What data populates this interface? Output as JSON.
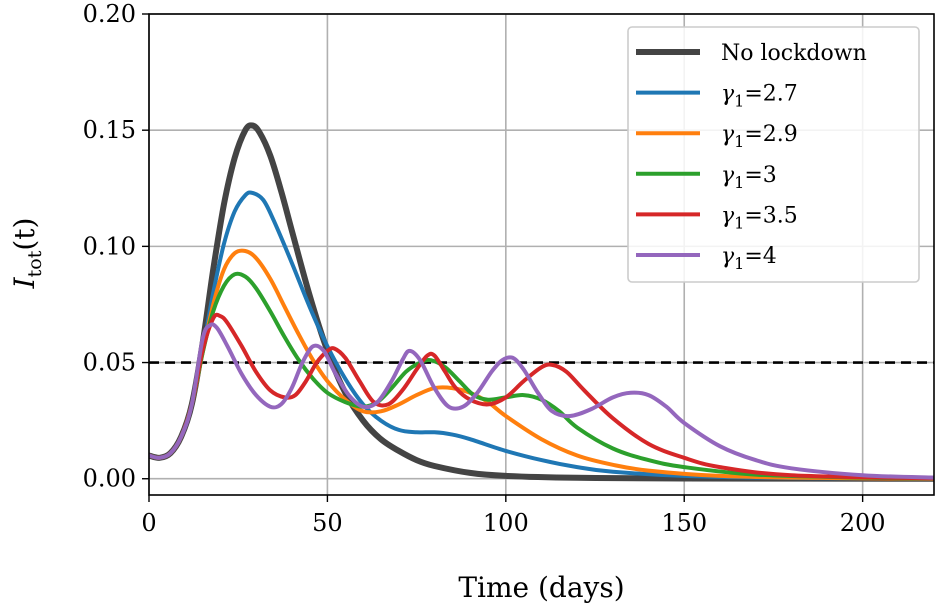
{
  "chart_data": {
    "type": "line",
    "title": "",
    "xlabel": "Time (days)",
    "ylabel_main": "I",
    "ylabel_sub": "tot",
    "ylabel_arg": "(t)",
    "xlim": [
      0,
      220
    ],
    "ylim": [
      -0.007,
      0.2
    ],
    "xticks": [
      0,
      50,
      100,
      150,
      200
    ],
    "xtick_labels": [
      "0",
      "50",
      "100",
      "150",
      "200"
    ],
    "yticks": [
      0.0,
      0.05,
      0.1,
      0.15,
      0.2
    ],
    "ytick_labels": [
      "0.00",
      "0.05",
      "0.10",
      "0.15",
      "0.20"
    ],
    "grid": true,
    "legend_position": "top-right",
    "threshold": {
      "y": 0.05,
      "style": "dashed",
      "color": "#000000"
    },
    "series": [
      {
        "name": "No lockdown",
        "label_main": "No lockdown",
        "label_value": "",
        "color": "#444444",
        "points": [
          [
            0,
            0.01
          ],
          [
            3,
            0.009
          ],
          [
            6,
            0.011
          ],
          [
            9,
            0.018
          ],
          [
            12,
            0.032
          ],
          [
            15,
            0.058
          ],
          [
            18,
            0.09
          ],
          [
            21,
            0.118
          ],
          [
            24,
            0.138
          ],
          [
            27,
            0.15
          ],
          [
            29,
            0.152
          ],
          [
            31,
            0.149
          ],
          [
            34,
            0.139
          ],
          [
            37,
            0.124
          ],
          [
            40,
            0.107
          ],
          [
            45,
            0.079
          ],
          [
            50,
            0.055
          ],
          [
            55,
            0.037
          ],
          [
            60,
            0.025
          ],
          [
            65,
            0.017
          ],
          [
            70,
            0.012
          ],
          [
            75,
            0.008
          ],
          [
            80,
            0.0055
          ],
          [
            90,
            0.0025
          ],
          [
            100,
            0.0012
          ],
          [
            120,
            0.0004
          ],
          [
            150,
            0.0001
          ],
          [
            220,
            0.0
          ]
        ]
      },
      {
        "name": "γ1=2.7",
        "label_main": "γ",
        "label_value": "=2.7",
        "color": "#1f77b4",
        "points": [
          [
            0,
            0.01
          ],
          [
            3,
            0.009
          ],
          [
            6,
            0.011
          ],
          [
            9,
            0.018
          ],
          [
            12,
            0.032
          ],
          [
            15,
            0.055
          ],
          [
            18,
            0.08
          ],
          [
            21,
            0.101
          ],
          [
            24,
            0.115
          ],
          [
            27,
            0.122
          ],
          [
            29,
            0.123
          ],
          [
            32,
            0.12
          ],
          [
            35,
            0.111
          ],
          [
            40,
            0.093
          ],
          [
            45,
            0.074
          ],
          [
            50,
            0.057
          ],
          [
            55,
            0.043
          ],
          [
            60,
            0.032
          ],
          [
            65,
            0.025
          ],
          [
            70,
            0.021
          ],
          [
            75,
            0.02
          ],
          [
            80,
            0.02
          ],
          [
            85,
            0.019
          ],
          [
            90,
            0.017
          ],
          [
            100,
            0.012
          ],
          [
            110,
            0.008
          ],
          [
            120,
            0.005
          ],
          [
            130,
            0.003
          ],
          [
            150,
            0.0012
          ],
          [
            180,
            0.0003
          ],
          [
            220,
            0.0
          ]
        ]
      },
      {
        "name": "γ1=2.9",
        "label_main": "γ",
        "label_value": "=2.9",
        "color": "#ff7f0e",
        "points": [
          [
            0,
            0.01
          ],
          [
            3,
            0.009
          ],
          [
            6,
            0.011
          ],
          [
            9,
            0.018
          ],
          [
            12,
            0.032
          ],
          [
            15,
            0.054
          ],
          [
            18,
            0.075
          ],
          [
            21,
            0.09
          ],
          [
            24,
            0.097
          ],
          [
            27,
            0.098
          ],
          [
            30,
            0.095
          ],
          [
            34,
            0.086
          ],
          [
            38,
            0.074
          ],
          [
            42,
            0.062
          ],
          [
            46,
            0.051
          ],
          [
            50,
            0.042
          ],
          [
            55,
            0.034
          ],
          [
            60,
            0.029
          ],
          [
            65,
            0.029
          ],
          [
            70,
            0.032
          ],
          [
            75,
            0.036
          ],
          [
            80,
            0.039
          ],
          [
            85,
            0.039
          ],
          [
            90,
            0.037
          ],
          [
            95,
            0.033
          ],
          [
            100,
            0.027
          ],
          [
            110,
            0.017
          ],
          [
            120,
            0.01
          ],
          [
            130,
            0.006
          ],
          [
            140,
            0.0035
          ],
          [
            160,
            0.0012
          ],
          [
            190,
            0.0003
          ],
          [
            220,
            0.0
          ]
        ]
      },
      {
        "name": "γ1=3",
        "label_main": "γ",
        "label_value": "=3",
        "color": "#2ca02c",
        "points": [
          [
            0,
            0.01
          ],
          [
            3,
            0.009
          ],
          [
            6,
            0.011
          ],
          [
            9,
            0.018
          ],
          [
            12,
            0.032
          ],
          [
            15,
            0.054
          ],
          [
            18,
            0.072
          ],
          [
            21,
            0.083
          ],
          [
            24,
            0.088
          ],
          [
            27,
            0.087
          ],
          [
            30,
            0.082
          ],
          [
            34,
            0.072
          ],
          [
            38,
            0.061
          ],
          [
            42,
            0.051
          ],
          [
            46,
            0.043
          ],
          [
            50,
            0.037
          ],
          [
            55,
            0.033
          ],
          [
            60,
            0.031
          ],
          [
            64,
            0.033
          ],
          [
            68,
            0.039
          ],
          [
            72,
            0.046
          ],
          [
            76,
            0.05
          ],
          [
            79,
            0.051
          ],
          [
            83,
            0.048
          ],
          [
            87,
            0.042
          ],
          [
            91,
            0.036
          ],
          [
            95,
            0.034
          ],
          [
            100,
            0.035
          ],
          [
            105,
            0.036
          ],
          [
            110,
            0.034
          ],
          [
            115,
            0.029
          ],
          [
            120,
            0.022
          ],
          [
            130,
            0.013
          ],
          [
            140,
            0.008
          ],
          [
            150,
            0.005
          ],
          [
            170,
            0.0018
          ],
          [
            200,
            0.0005
          ],
          [
            220,
            0.0002
          ]
        ]
      },
      {
        "name": "γ1=3.5",
        "label_main": "γ",
        "label_value": "=3.5",
        "color": "#d62728",
        "points": [
          [
            0,
            0.01
          ],
          [
            3,
            0.009
          ],
          [
            6,
            0.011
          ],
          [
            9,
            0.018
          ],
          [
            12,
            0.032
          ],
          [
            15,
            0.055
          ],
          [
            18,
            0.069
          ],
          [
            20,
            0.07
          ],
          [
            22,
            0.067
          ],
          [
            26,
            0.057
          ],
          [
            30,
            0.046
          ],
          [
            34,
            0.038
          ],
          [
            38,
            0.035
          ],
          [
            41,
            0.036
          ],
          [
            44,
            0.042
          ],
          [
            47,
            0.05
          ],
          [
            50,
            0.055
          ],
          [
            52,
            0.056
          ],
          [
            55,
            0.052
          ],
          [
            59,
            0.042
          ],
          [
            63,
            0.033
          ],
          [
            67,
            0.032
          ],
          [
            71,
            0.038
          ],
          [
            75,
            0.047
          ],
          [
            78,
            0.053
          ],
          [
            80,
            0.053
          ],
          [
            83,
            0.046
          ],
          [
            86,
            0.039
          ],
          [
            90,
            0.034
          ],
          [
            95,
            0.032
          ],
          [
            100,
            0.035
          ],
          [
            105,
            0.042
          ],
          [
            110,
            0.048
          ],
          [
            113,
            0.049
          ],
          [
            117,
            0.046
          ],
          [
            122,
            0.038
          ],
          [
            130,
            0.026
          ],
          [
            140,
            0.015
          ],
          [
            150,
            0.009
          ],
          [
            160,
            0.005
          ],
          [
            180,
            0.0015
          ],
          [
            220,
            0.0002
          ]
        ]
      },
      {
        "name": "γ1=4",
        "label_main": "γ",
        "label_value": "=4",
        "color": "#9467bd",
        "points": [
          [
            0,
            0.01
          ],
          [
            3,
            0.009
          ],
          [
            6,
            0.011
          ],
          [
            9,
            0.018
          ],
          [
            12,
            0.032
          ],
          [
            15,
            0.06
          ],
          [
            17,
            0.066
          ],
          [
            19,
            0.065
          ],
          [
            22,
            0.057
          ],
          [
            26,
            0.045
          ],
          [
            30,
            0.036
          ],
          [
            34,
            0.031
          ],
          [
            37,
            0.032
          ],
          [
            40,
            0.039
          ],
          [
            43,
            0.05
          ],
          [
            46,
            0.057
          ],
          [
            49,
            0.055
          ],
          [
            52,
            0.046
          ],
          [
            56,
            0.036
          ],
          [
            60,
            0.031
          ],
          [
            64,
            0.033
          ],
          [
            68,
            0.042
          ],
          [
            71,
            0.051
          ],
          [
            73,
            0.055
          ],
          [
            76,
            0.051
          ],
          [
            80,
            0.039
          ],
          [
            84,
            0.031
          ],
          [
            88,
            0.031
          ],
          [
            92,
            0.037
          ],
          [
            96,
            0.046
          ],
          [
            99,
            0.051
          ],
          [
            102,
            0.052
          ],
          [
            105,
            0.047
          ],
          [
            109,
            0.037
          ],
          [
            113,
            0.029
          ],
          [
            118,
            0.027
          ],
          [
            124,
            0.03
          ],
          [
            130,
            0.035
          ],
          [
            135,
            0.037
          ],
          [
            140,
            0.036
          ],
          [
            145,
            0.031
          ],
          [
            150,
            0.024
          ],
          [
            160,
            0.014
          ],
          [
            170,
            0.008
          ],
          [
            180,
            0.0045
          ],
          [
            200,
            0.0015
          ],
          [
            220,
            0.0005
          ]
        ]
      }
    ]
  }
}
